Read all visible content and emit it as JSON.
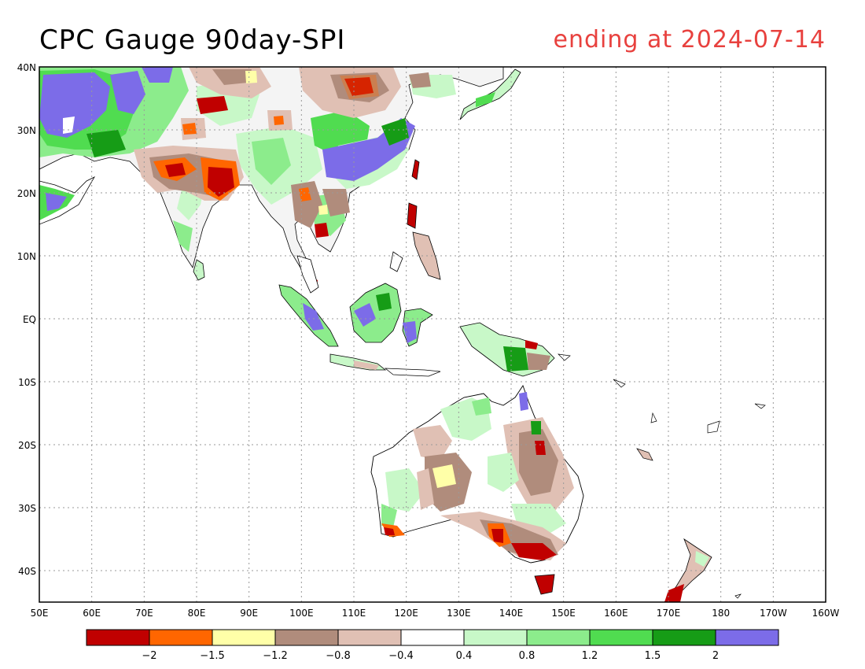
{
  "header": {
    "title": "CPC Gauge 90day-SPI",
    "ending_label": "ending at 2024-07-14"
  },
  "axes": {
    "x_ticks": [
      "50E",
      "60E",
      "70E",
      "80E",
      "90E",
      "100E",
      "110E",
      "120E",
      "130E",
      "140E",
      "150E",
      "160E",
      "170E",
      "180",
      "170W",
      "160W"
    ],
    "y_ticks": [
      "40N",
      "30N",
      "20N",
      "10N",
      "EQ",
      "10S",
      "20S",
      "30S",
      "40S"
    ]
  },
  "colorbar": {
    "colors": [
      "#c00000",
      "#ff6600",
      "#ffffa8",
      "#b08c7c",
      "#e0c0b4",
      "#ffffff",
      "#c8f8c8",
      "#8cec8c",
      "#50dc50",
      "#169c16",
      "#7c6ce8"
    ],
    "labels": [
      "−2",
      "−1.5",
      "−1.2",
      "−0.8",
      "−0.4",
      "0.4",
      "0.8",
      "1.2",
      "1.5",
      "2"
    ]
  }
}
